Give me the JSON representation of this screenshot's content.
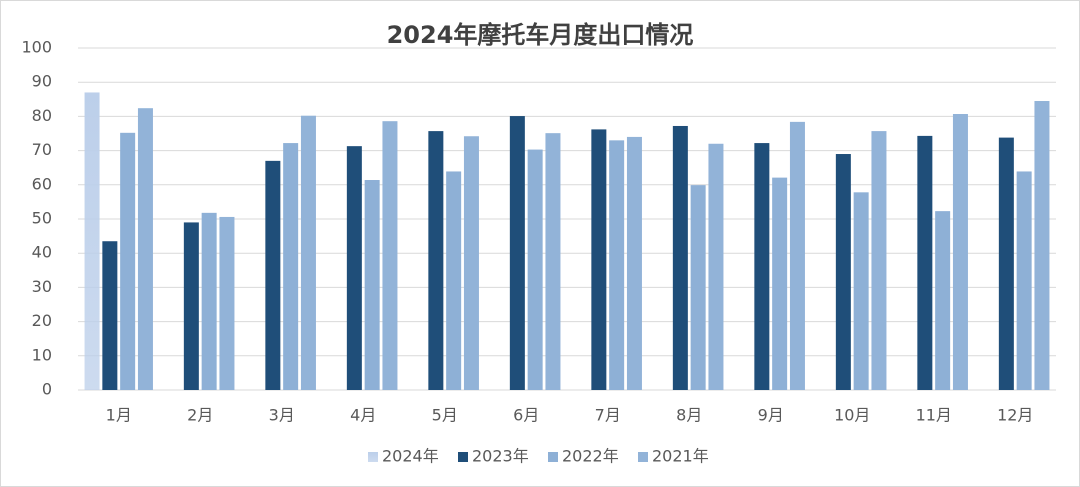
{
  "chart_data": {
    "type": "bar",
    "title": "2024年摩托车月度出口情况",
    "categories": [
      "1月",
      "2月",
      "3月",
      "4月",
      "5月",
      "6月",
      "7月",
      "8月",
      "9月",
      "10月",
      "11月",
      "12月"
    ],
    "series": [
      {
        "name": "2024年",
        "color": "#bccfea",
        "values": [
          87,
          null,
          null,
          null,
          null,
          null,
          null,
          null,
          null,
          null,
          null,
          null
        ]
      },
      {
        "name": "2023年",
        "color": "#1f4e79",
        "values": [
          43.5,
          49,
          67,
          71.3,
          75.7,
          80.1,
          76.2,
          77.2,
          72.2,
          69,
          74.3,
          73.8
        ]
      },
      {
        "name": "2022年",
        "color": "#8eb0d6",
        "values": [
          75.2,
          51.8,
          72.2,
          61.4,
          63.9,
          70.3,
          73,
          59.9,
          62.1,
          57.8,
          52.3,
          63.9
        ]
      },
      {
        "name": "2021年",
        "color": "#92b3d8",
        "values": [
          82.4,
          50.6,
          80.2,
          78.6,
          74.2,
          75.1,
          74,
          72,
          78.4,
          75.7,
          80.7,
          84.5
        ]
      }
    ],
    "ylim": [
      0,
      100
    ],
    "yticks": [
      0,
      10,
      20,
      30,
      40,
      50,
      60,
      70,
      80,
      90,
      100
    ],
    "grid": true,
    "legend": "bottom"
  }
}
